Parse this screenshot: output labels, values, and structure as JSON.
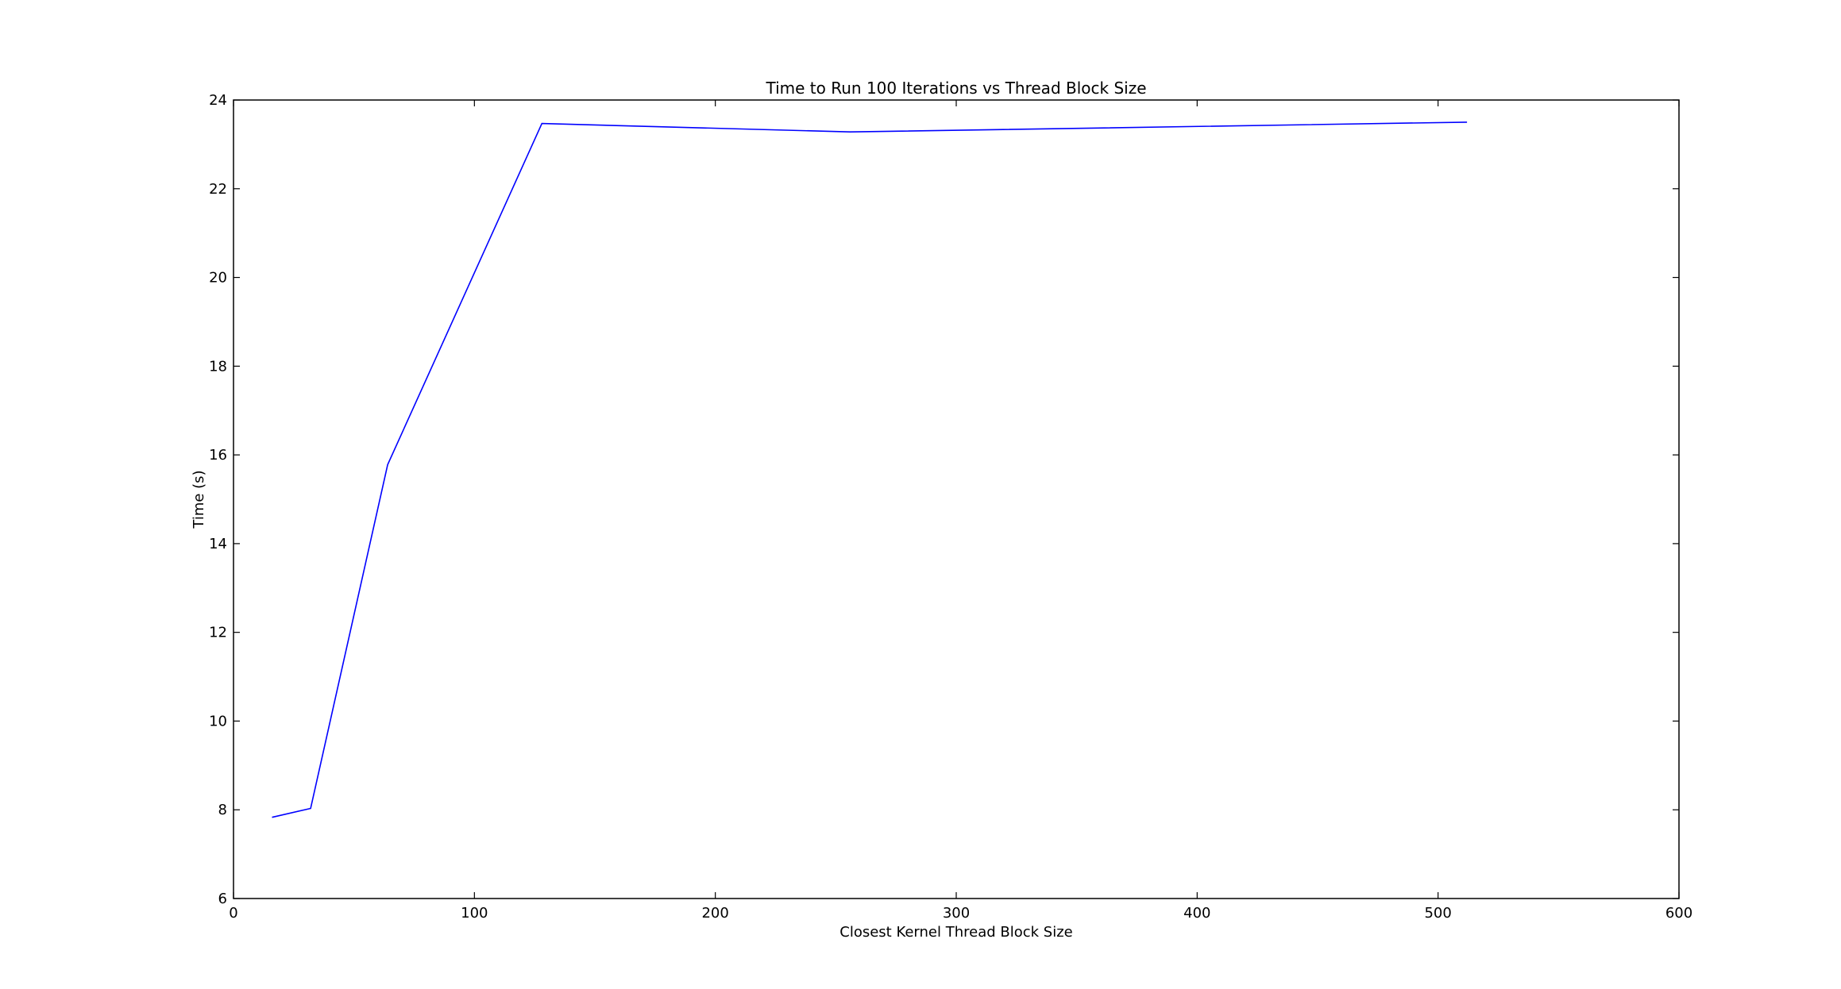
{
  "chart_data": {
    "type": "line",
    "title": "Time to Run 100 Iterations vs Thread Block Size",
    "xlabel": "Closest Kernel Thread Block Size",
    "ylabel": "Time (s)",
    "xlim": [
      0,
      600
    ],
    "ylim": [
      6,
      24
    ],
    "xticks": [
      0,
      100,
      200,
      300,
      400,
      500,
      600
    ],
    "yticks": [
      6,
      8,
      10,
      12,
      14,
      16,
      18,
      20,
      22,
      24
    ],
    "grid": false,
    "legend": "none",
    "series": [
      {
        "color": "#0000ff",
        "x": [
          16,
          32,
          64,
          128,
          256,
          512
        ],
        "y": [
          7.83,
          8.03,
          15.78,
          23.47,
          23.28,
          23.5
        ]
      }
    ]
  }
}
